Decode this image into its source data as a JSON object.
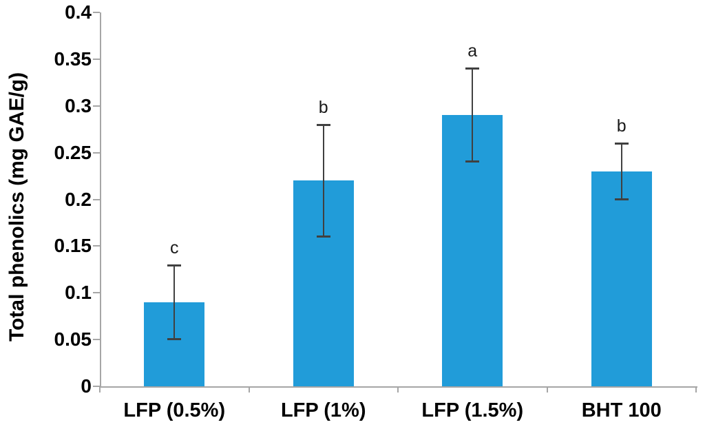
{
  "chart_data": {
    "type": "bar",
    "title": "",
    "xlabel": "",
    "ylabel": "Total phenolics (mg GAE/g)",
    "categories": [
      "LFP (0.5%)",
      "LFP (1%)",
      "LFP (1.5%)",
      "BHT 100"
    ],
    "values": [
      0.09,
      0.22,
      0.29,
      0.23
    ],
    "error_bars": [
      0.04,
      0.06,
      0.05,
      0.03
    ],
    "significance_letters": [
      "c",
      "b",
      "a",
      "b"
    ],
    "ylim": [
      0,
      0.4
    ],
    "ytick_step": 0.05,
    "ytick_labels": [
      "0",
      "0.05",
      "0.1",
      "0.15",
      "0.2",
      "0.25",
      "0.3",
      "0.35",
      "0.4"
    ],
    "grid": false,
    "legend": false,
    "colors": {
      "bar_fill": "#219CD9",
      "axis_line": "#A6A6A6",
      "error_bar": "#404040",
      "text": "#000000"
    }
  }
}
